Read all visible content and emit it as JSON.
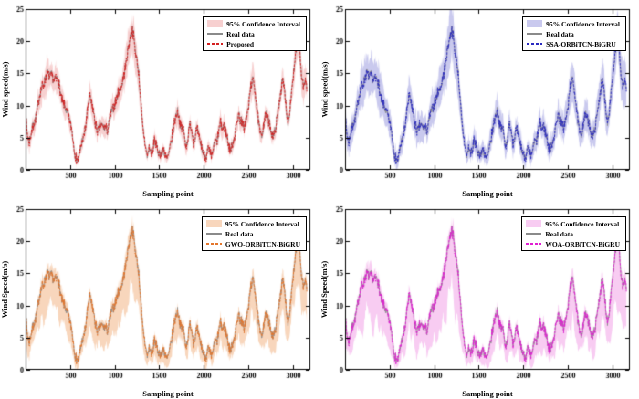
{
  "figure": {
    "background": "#ffffff"
  },
  "chart_data": {
    "type": "line",
    "layout": "2x2-subplots",
    "description": "Wind speed prediction interval comparison: real data with model predictions and 95% confidence bands",
    "xlabel": "Sampling point",
    "xlim": [
      0,
      3200
    ],
    "ylim": [
      0,
      25
    ],
    "xticks": [
      500,
      1000,
      1500,
      2000,
      2500,
      3000
    ],
    "yticks": [
      0,
      5,
      10,
      15,
      20,
      25
    ],
    "real_data_color": "#8a8a8a",
    "real_series_keypoints": [
      [
        0,
        8.0
      ],
      [
        20,
        5.5
      ],
      [
        40,
        4.5
      ],
      [
        70,
        6.0
      ],
      [
        100,
        7.5
      ],
      [
        130,
        9.5
      ],
      [
        160,
        12.0
      ],
      [
        190,
        13.5
      ],
      [
        220,
        14.2
      ],
      [
        250,
        14.6
      ],
      [
        270,
        13.6
      ],
      [
        290,
        14.3
      ],
      [
        320,
        14.0
      ],
      [
        350,
        13.6
      ],
      [
        380,
        12.8
      ],
      [
        410,
        11.2
      ],
      [
        440,
        10.6
      ],
      [
        470,
        9.2
      ],
      [
        500,
        7.8
      ],
      [
        530,
        5.2
      ],
      [
        560,
        2.6
      ],
      [
        590,
        2.0
      ],
      [
        620,
        3.2
      ],
      [
        650,
        4.2
      ],
      [
        680,
        7.5
      ],
      [
        700,
        10.5
      ],
      [
        720,
        12.2
      ],
      [
        740,
        10.8
      ],
      [
        760,
        9.6
      ],
      [
        780,
        8.0
      ],
      [
        800,
        7.2
      ],
      [
        820,
        6.6
      ],
      [
        840,
        7.4
      ],
      [
        860,
        7.2
      ],
      [
        880,
        6.8
      ],
      [
        900,
        6.2
      ],
      [
        920,
        5.2
      ],
      [
        940,
        6.5
      ],
      [
        960,
        8.0
      ],
      [
        980,
        8.6
      ],
      [
        1000,
        9.2
      ],
      [
        1030,
        10.6
      ],
      [
        1060,
        12.2
      ],
      [
        1090,
        14.2
      ],
      [
        1120,
        16.4
      ],
      [
        1150,
        18.8
      ],
      [
        1180,
        21.2
      ],
      [
        1200,
        22.4
      ],
      [
        1215,
        21.4
      ],
      [
        1230,
        19.6
      ],
      [
        1250,
        17.6
      ],
      [
        1270,
        15.4
      ],
      [
        1290,
        11.5
      ],
      [
        1310,
        8.0
      ],
      [
        1330,
        6.2
      ],
      [
        1350,
        4.0
      ],
      [
        1370,
        2.8
      ],
      [
        1390,
        4.2
      ],
      [
        1410,
        3.4
      ],
      [
        1430,
        2.2
      ],
      [
        1450,
        4.4
      ],
      [
        1470,
        3.8
      ],
      [
        1490,
        2.8
      ],
      [
        1510,
        2.2
      ],
      [
        1530,
        1.6
      ],
      [
        1550,
        3.0
      ],
      [
        1570,
        1.4
      ],
      [
        1590,
        0.9
      ],
      [
        1610,
        1.8
      ],
      [
        1630,
        3.6
      ],
      [
        1650,
        5.5
      ],
      [
        1670,
        7.0
      ],
      [
        1690,
        8.2
      ],
      [
        1710,
        8.6
      ],
      [
        1730,
        7.2
      ],
      [
        1750,
        6.6
      ],
      [
        1770,
        7.4
      ],
      [
        1790,
        5.6
      ],
      [
        1810,
        4.6
      ],
      [
        1830,
        6.0
      ],
      [
        1850,
        7.4
      ],
      [
        1870,
        6.0
      ],
      [
        1890,
        4.2
      ],
      [
        1910,
        5.4
      ],
      [
        1930,
        6.4
      ],
      [
        1950,
        5.2
      ],
      [
        1970,
        4.6
      ],
      [
        1990,
        3.8
      ],
      [
        2010,
        3.0
      ],
      [
        2030,
        2.4
      ],
      [
        2050,
        3.4
      ],
      [
        2070,
        2.6
      ],
      [
        2090,
        2.1
      ],
      [
        2110,
        3.0
      ],
      [
        2130,
        4.0
      ],
      [
        2150,
        3.6
      ],
      [
        2170,
        5.0
      ],
      [
        2190,
        6.4
      ],
      [
        2210,
        5.6
      ],
      [
        2230,
        6.8
      ],
      [
        2250,
        6.0
      ],
      [
        2270,
        4.6
      ],
      [
        2290,
        3.2
      ],
      [
        2310,
        2.6
      ],
      [
        2330,
        4.0
      ],
      [
        2350,
        5.6
      ],
      [
        2370,
        7.2
      ],
      [
        2390,
        8.4
      ],
      [
        2410,
        7.6
      ],
      [
        2430,
        8.2
      ],
      [
        2450,
        7.2
      ],
      [
        2470,
        8.4
      ],
      [
        2490,
        9.0
      ],
      [
        2510,
        10.2
      ],
      [
        2530,
        12.4
      ],
      [
        2550,
        13.6
      ],
      [
        2570,
        12.8
      ],
      [
        2590,
        10.4
      ],
      [
        2610,
        8.0
      ],
      [
        2630,
        6.0
      ],
      [
        2650,
        4.8
      ],
      [
        2670,
        6.0
      ],
      [
        2690,
        7.4
      ],
      [
        2710,
        8.0
      ],
      [
        2730,
        7.2
      ],
      [
        2750,
        6.6
      ],
      [
        2770,
        5.2
      ],
      [
        2790,
        4.8
      ],
      [
        2810,
        6.2
      ],
      [
        2830,
        8.0
      ],
      [
        2850,
        10.0
      ],
      [
        2870,
        11.8
      ],
      [
        2890,
        13.2
      ],
      [
        2910,
        11.8
      ],
      [
        2930,
        9.2
      ],
      [
        2950,
        7.8
      ],
      [
        2970,
        10.0
      ],
      [
        2990,
        12.6
      ],
      [
        3010,
        15.0
      ],
      [
        3030,
        17.5
      ],
      [
        3050,
        20.5
      ],
      [
        3065,
        22.3
      ],
      [
        3080,
        19.0
      ],
      [
        3100,
        15.5
      ],
      [
        3120,
        13.2
      ],
      [
        3140,
        14.6
      ],
      [
        3160,
        13.2
      ]
    ],
    "noise": {
      "seed": 7,
      "fine": 1.5,
      "medium": 2.0,
      "pred_offset": 0.7,
      "step": 4,
      "band_jitter": 0.7
    },
    "charts": [
      {
        "position": "top-left",
        "ylabel": "Wind speed(m/s)",
        "xlabel": "Sampling point",
        "model": "Proposed",
        "line_color": "#d42020",
        "ci_color": "#f7d0d0",
        "legend": [
          "95% Confidence Interval",
          "Real data",
          "Proposed"
        ],
        "ci_up": {
          "a": 0.5,
          "b": 0.1
        },
        "ci_down": {
          "a": 0.6,
          "b": 0.13
        }
      },
      {
        "position": "top-right",
        "ylabel": "Wind speed(m/s)",
        "xlabel": "Sampling point",
        "model": "SSA-QRBiTCN-BiGRU",
        "line_color": "#2a2ac0",
        "ci_color": "#c9c9ee",
        "legend": [
          "95% Confidence Interval",
          "Real data",
          "SSA-QRBiTCN-BiGRU"
        ],
        "ci_up": {
          "a": 1.0,
          "b": 0.15
        },
        "ci_down": {
          "a": 1.0,
          "b": 0.16
        }
      },
      {
        "position": "bottom-left",
        "ylabel": "Wind Speed(m/s)",
        "xlabel": "Sampling point",
        "model": "GWO-QRBiTCN-BiGRU",
        "line_color": "#e4762c",
        "ci_color": "#f8d6bc",
        "legend": [
          "95% Confidence Interval",
          "Real data",
          "GWO-QRBiTCN-BiGRU"
        ],
        "ci_up": {
          "a": 0.4,
          "b": 0.07
        },
        "ci_down": {
          "a": 0.8,
          "b": 0.33
        }
      },
      {
        "position": "bottom-right",
        "ylabel": "Wind Speed(m/s)",
        "xlabel": "Sampling point",
        "model": "WOA-QRBiTCN-BiGRU",
        "line_color": "#e01ed2",
        "ci_color": "#f8ccf2",
        "legend": [
          "95% Confidence Interval",
          "Real data",
          "WOA-QRBiTCN-BiGRU"
        ],
        "ci_up": {
          "a": 0.4,
          "b": 0.07
        },
        "ci_down": {
          "a": 0.6,
          "b": 0.46
        }
      }
    ]
  }
}
